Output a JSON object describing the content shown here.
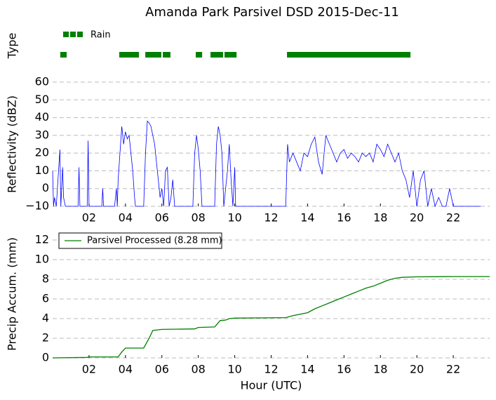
{
  "title": "Amanda Park Parsivel DSD 2015-Dec-11",
  "chart_data": [
    {
      "type": "timeline",
      "ylabel": "Type",
      "xlim": [
        0,
        24
      ],
      "legend": "upper left",
      "series": [
        {
          "name": "Rain",
          "color": "#008000",
          "segments": [
            [
              0.42,
              0.77
            ],
            [
              3.66,
              4.74
            ],
            [
              5.09,
              5.97
            ],
            [
              6.05,
              6.47
            ],
            [
              7.86,
              8.21
            ],
            [
              8.67,
              9.36
            ],
            [
              9.44,
              10.1
            ],
            [
              12.87,
              19.65
            ]
          ]
        }
      ]
    },
    {
      "type": "line",
      "ylabel": "Reflectivity (dBZ)",
      "xlim": [
        0,
        24
      ],
      "ylim": [
        -10,
        60
      ],
      "yticks": [
        {
          "value": -10,
          "label": "−10"
        },
        0,
        10,
        20,
        30,
        40,
        50,
        60
      ],
      "xticks": [
        {
          "value": 2,
          "label": "02"
        },
        {
          "value": 4,
          "label": "04"
        },
        {
          "value": 6,
          "label": "06"
        },
        {
          "value": 8,
          "label": "08"
        },
        10,
        12,
        14,
        16,
        18,
        20,
        22
      ],
      "grid": true,
      "series": [
        {
          "color": "#0000ff",
          "x": [
            0.0,
            0.05,
            0.1,
            0.2,
            0.4,
            0.45,
            0.55,
            0.6,
            0.7,
            1.0,
            1.4,
            1.45,
            1.5,
            1.9,
            1.95,
            2.0,
            2.7,
            2.75,
            2.8,
            3.4,
            3.5,
            3.55,
            3.6,
            3.7,
            3.8,
            3.9,
            4.0,
            4.1,
            4.2,
            4.3,
            4.4,
            4.5,
            4.55,
            5.0,
            5.1,
            5.2,
            5.3,
            5.4,
            5.5,
            5.6,
            5.7,
            5.8,
            5.9,
            6.0,
            6.1,
            6.2,
            6.3,
            6.4,
            6.5,
            6.6,
            6.7,
            7.7,
            7.8,
            7.9,
            8.0,
            8.1,
            8.2,
            8.9,
            9.0,
            9.1,
            9.2,
            9.3,
            9.4,
            9.6,
            9.7,
            9.8,
            9.9,
            10.0,
            10.05,
            12.8,
            12.9,
            13.0,
            13.2,
            13.4,
            13.6,
            13.8,
            14.0,
            14.2,
            14.4,
            14.6,
            14.8,
            15.0,
            15.2,
            15.4,
            15.6,
            15.8,
            16.0,
            16.2,
            16.4,
            16.6,
            16.8,
            17.0,
            17.2,
            17.4,
            17.6,
            17.8,
            18.0,
            18.2,
            18.4,
            18.6,
            18.8,
            19.0,
            19.2,
            19.4,
            19.6,
            19.8,
            20.0,
            20.2,
            20.4,
            20.6,
            20.8,
            21.0,
            21.2,
            21.4,
            21.6,
            21.8,
            22.0,
            23.0,
            23.5
          ],
          "values": [
            10,
            -10,
            -5,
            -10,
            22,
            -10,
            12,
            -5,
            -10,
            -10,
            -10,
            12,
            -10,
            -10,
            27,
            -10,
            -10,
            0,
            -10,
            -10,
            0,
            -10,
            5,
            20,
            35,
            25,
            32,
            28,
            30,
            20,
            10,
            -5,
            -10,
            -10,
            20,
            38,
            37,
            35,
            30,
            25,
            15,
            5,
            -5,
            0,
            -10,
            10,
            12,
            -10,
            -5,
            5,
            -10,
            -10,
            20,
            30,
            22,
            10,
            -10,
            -10,
            25,
            35,
            30,
            20,
            -10,
            10,
            25,
            5,
            -10,
            12,
            -10,
            -10,
            25,
            15,
            20,
            15,
            10,
            20,
            18,
            25,
            29,
            15,
            8,
            30,
            25,
            20,
            15,
            20,
            22,
            17,
            20,
            18,
            15,
            20,
            18,
            20,
            15,
            25,
            22,
            18,
            25,
            20,
            15,
            20,
            10,
            5,
            -5,
            10,
            -10,
            5,
            10,
            -10,
            0,
            -10,
            -5,
            -10,
            -10,
            0,
            -10,
            -10,
            -10
          ]
        }
      ]
    },
    {
      "type": "line",
      "ylabel": "Precip Accum. (mm)",
      "xlabel": "Hour (UTC)",
      "xlim": [
        0,
        24
      ],
      "ylim": [
        0,
        13
      ],
      "yticks": [
        0,
        2,
        4,
        6,
        8,
        10,
        12
      ],
      "xticks": [
        {
          "value": 2,
          "label": "02"
        },
        {
          "value": 4,
          "label": "04"
        },
        {
          "value": 6,
          "label": "06"
        },
        {
          "value": 8,
          "label": "08"
        },
        10,
        12,
        14,
        16,
        18,
        20,
        22
      ],
      "grid": true,
      "legend": "upper left",
      "series": [
        {
          "name": "Parsivel Processed (8.28 mm)",
          "color": "#008000",
          "x": [
            0,
            1.9,
            2.0,
            3.6,
            3.8,
            4.0,
            4.2,
            5.0,
            5.3,
            5.5,
            6.0,
            7.8,
            8.0,
            8.9,
            9.2,
            9.5,
            9.7,
            10.0,
            12.8,
            13.2,
            14.0,
            14.4,
            14.8,
            15.2,
            15.6,
            16.0,
            16.4,
            16.8,
            17.2,
            17.6,
            18.0,
            18.4,
            18.8,
            19.2,
            20.0,
            22.0,
            24
          ],
          "values": [
            0,
            0.05,
            0.1,
            0.1,
            0.6,
            1.0,
            1.0,
            1.0,
            2.0,
            2.8,
            2.9,
            2.95,
            3.1,
            3.15,
            3.8,
            3.85,
            4.0,
            4.05,
            4.1,
            4.3,
            4.6,
            5.0,
            5.3,
            5.6,
            5.9,
            6.2,
            6.5,
            6.8,
            7.1,
            7.3,
            7.6,
            7.9,
            8.1,
            8.2,
            8.25,
            8.28,
            8.28
          ]
        }
      ]
    }
  ]
}
